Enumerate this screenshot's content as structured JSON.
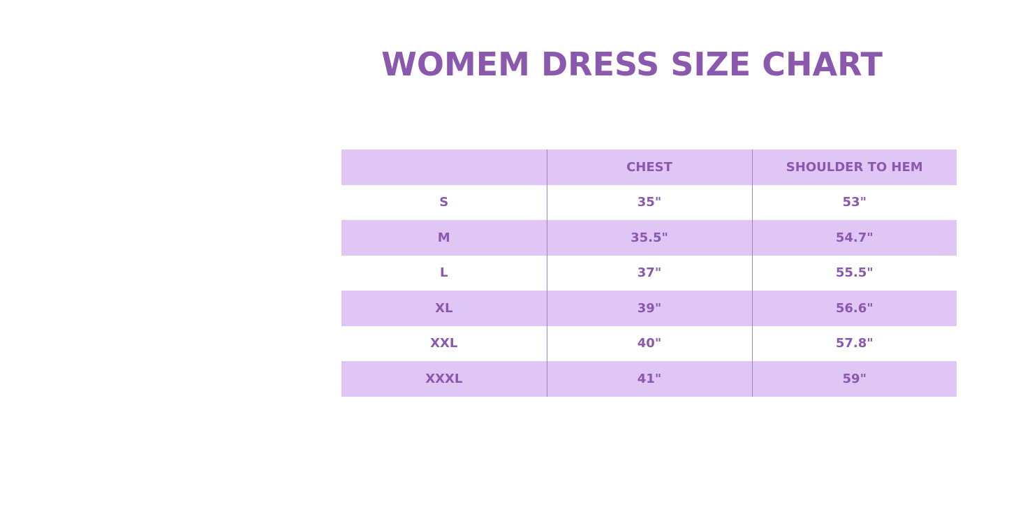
{
  "title": "WOMEM DRESS SIZE CHART",
  "colors": {
    "accent": "#8a58ad",
    "row_shade": "#e0c6f4"
  },
  "table": {
    "headers": [
      "",
      "CHEST",
      "SHOULDER TO HEM"
    ],
    "rows": [
      [
        "S",
        "35\"",
        "53\""
      ],
      [
        "M",
        "35.5\"",
        "54.7\""
      ],
      [
        "L",
        "37\"",
        "55.5\""
      ],
      [
        "XL",
        "39\"",
        "56.6\""
      ],
      [
        "XXL",
        "40\"",
        "57.8\""
      ],
      [
        "XXXL",
        "41\"",
        "59\""
      ]
    ]
  }
}
